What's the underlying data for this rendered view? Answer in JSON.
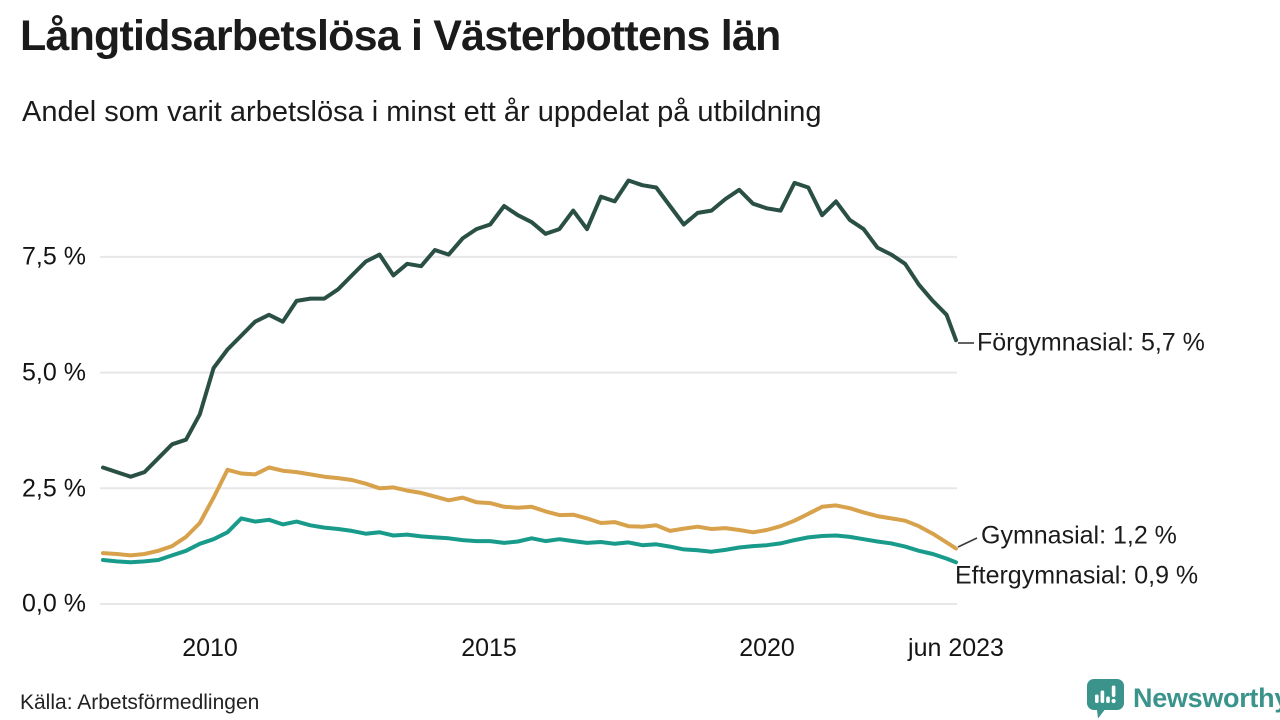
{
  "header": {
    "title": "Långtidsarbetslösa i Västerbottens län",
    "subtitle": "Andel som varit arbetslösa i minst ett år uppdelat på utbildning"
  },
  "source": "Källa: Arbetsförmedlingen",
  "logo": {
    "name": "Newsworthy",
    "color": "#3b948c"
  },
  "chart_data": {
    "type": "line",
    "title": "Långtidsarbetslösa i Västerbottens län",
    "xlabel": "",
    "ylabel": "Andel som varit arbetslösa i minst ett år (%)",
    "grid": "horizontal",
    "x_domain": [
      2008.0,
      2023.42
    ],
    "ylim": [
      0,
      9.6
    ],
    "yticks": [
      {
        "value": 7.5,
        "label": "7,5 %"
      },
      {
        "value": 5.0,
        "label": "5,0 %"
      },
      {
        "value": 2.5,
        "label": "2,5 %"
      },
      {
        "value": 0.0,
        "label": "0,0 %"
      }
    ],
    "xticks": [
      {
        "value": 2010,
        "label": "2010"
      },
      {
        "value": 2015,
        "label": "2015"
      },
      {
        "value": 2020,
        "label": "2020"
      },
      {
        "value": 2023.42,
        "label": "jun 2023"
      }
    ],
    "x": [
      2008.0,
      2008.25,
      2008.5,
      2008.75,
      2009.0,
      2009.25,
      2009.5,
      2009.75,
      2010.0,
      2010.25,
      2010.5,
      2010.75,
      2011.0,
      2011.25,
      2011.5,
      2011.75,
      2012.0,
      2012.25,
      2012.5,
      2012.75,
      2013.0,
      2013.25,
      2013.5,
      2013.75,
      2014.0,
      2014.25,
      2014.5,
      2014.75,
      2015.0,
      2015.25,
      2015.5,
      2015.75,
      2016.0,
      2016.25,
      2016.5,
      2016.75,
      2017.0,
      2017.25,
      2017.5,
      2017.75,
      2018.0,
      2018.25,
      2018.5,
      2018.75,
      2019.0,
      2019.25,
      2019.5,
      2019.75,
      2020.0,
      2020.25,
      2020.5,
      2020.75,
      2021.0,
      2021.25,
      2021.5,
      2021.75,
      2022.0,
      2022.25,
      2022.5,
      2022.75,
      2023.0,
      2023.25,
      2023.42
    ],
    "series": [
      {
        "name": "Förgymnasial",
        "end_label": "Förgymnasial: 5,7 %",
        "end_value": 5.7,
        "color": "#2a4f45",
        "values": [
          2.95,
          2.85,
          2.75,
          2.85,
          3.15,
          3.45,
          3.55,
          4.1,
          5.1,
          5.5,
          5.8,
          6.1,
          6.25,
          6.1,
          6.55,
          6.6,
          6.6,
          6.8,
          7.1,
          7.4,
          7.55,
          7.1,
          7.35,
          7.3,
          7.65,
          7.55,
          7.9,
          8.1,
          8.2,
          8.6,
          8.4,
          8.25,
          8.0,
          8.1,
          8.5,
          8.1,
          8.8,
          8.7,
          9.15,
          9.05,
          9.0,
          8.6,
          8.2,
          8.45,
          8.5,
          8.75,
          8.95,
          8.65,
          8.55,
          8.5,
          9.1,
          9.0,
          8.4,
          8.7,
          8.3,
          8.1,
          7.7,
          7.55,
          7.35,
          6.9,
          6.55,
          6.25,
          5.7
        ]
      },
      {
        "name": "Gymnasial",
        "end_label": "Gymnasial: 1,2 %",
        "end_value": 1.2,
        "color": "#d8a14b",
        "values": [
          1.1,
          1.08,
          1.05,
          1.08,
          1.15,
          1.25,
          1.45,
          1.75,
          2.3,
          2.9,
          2.82,
          2.8,
          2.95,
          2.88,
          2.85,
          2.8,
          2.75,
          2.72,
          2.68,
          2.6,
          2.5,
          2.52,
          2.45,
          2.4,
          2.32,
          2.24,
          2.3,
          2.2,
          2.18,
          2.1,
          2.08,
          2.1,
          2.0,
          1.92,
          1.93,
          1.85,
          1.75,
          1.77,
          1.68,
          1.67,
          1.7,
          1.58,
          1.63,
          1.67,
          1.62,
          1.64,
          1.6,
          1.55,
          1.6,
          1.68,
          1.8,
          1.95,
          2.1,
          2.13,
          2.07,
          1.98,
          1.9,
          1.85,
          1.8,
          1.68,
          1.52,
          1.33,
          1.2
        ]
      },
      {
        "name": "Eftergymnasial",
        "end_label": "Eftergymnasial: 0,9 %",
        "end_value": 0.9,
        "color": "#189b8b",
        "values": [
          0.95,
          0.92,
          0.9,
          0.92,
          0.95,
          1.05,
          1.15,
          1.3,
          1.4,
          1.55,
          1.85,
          1.78,
          1.82,
          1.72,
          1.78,
          1.7,
          1.65,
          1.62,
          1.58,
          1.52,
          1.55,
          1.48,
          1.5,
          1.46,
          1.44,
          1.42,
          1.38,
          1.36,
          1.36,
          1.32,
          1.35,
          1.42,
          1.36,
          1.4,
          1.36,
          1.32,
          1.34,
          1.3,
          1.33,
          1.27,
          1.29,
          1.24,
          1.18,
          1.16,
          1.13,
          1.17,
          1.22,
          1.25,
          1.27,
          1.31,
          1.38,
          1.44,
          1.47,
          1.48,
          1.45,
          1.4,
          1.35,
          1.31,
          1.24,
          1.15,
          1.08,
          0.98,
          0.9
        ]
      }
    ]
  }
}
